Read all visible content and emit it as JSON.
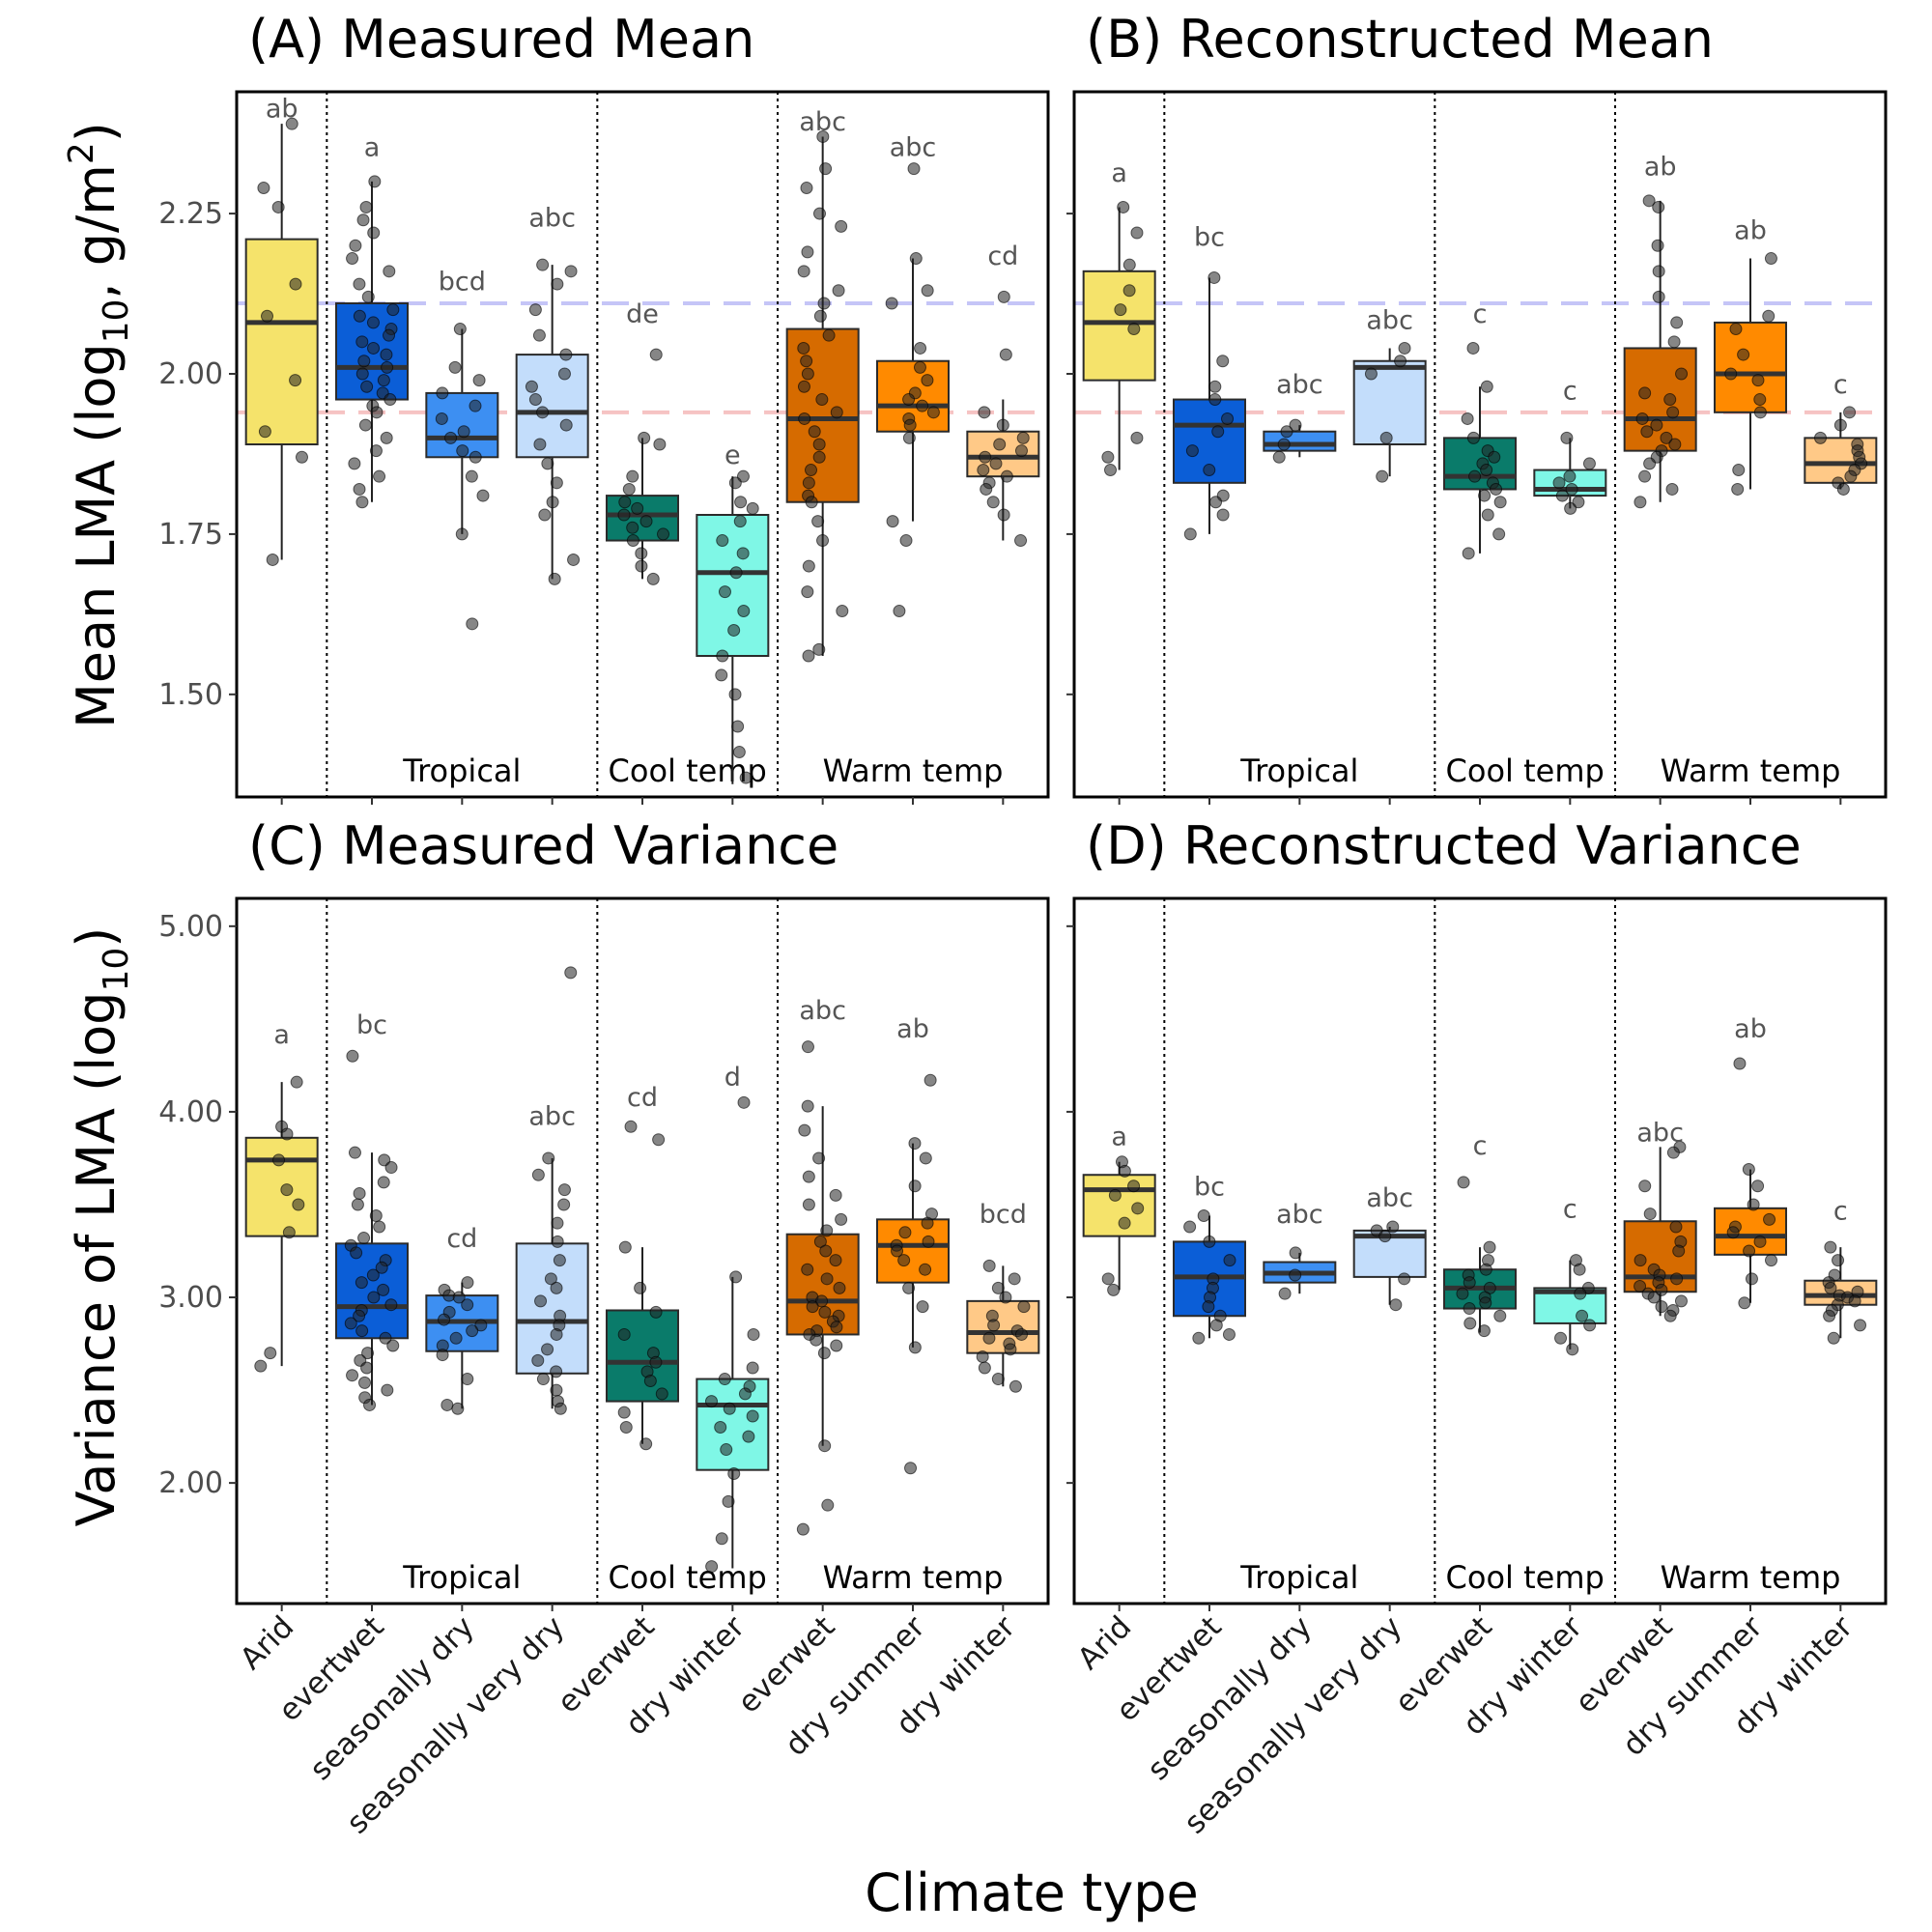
{
  "figure": {
    "xlabel": "Climate type"
  },
  "categories": [
    "Arid",
    "evertwet",
    "seasonally dry",
    "seasonally very dry",
    "everwet",
    "dry winter",
    "everwet",
    "dry summer",
    "dry winter"
  ],
  "groups": [
    {
      "label": "Tropical",
      "from": 1,
      "to": 3
    },
    {
      "label": "Cool temp",
      "from": 4,
      "to": 5
    },
    {
      "label": "Warm temp",
      "from": 6,
      "to": 8
    }
  ],
  "colors": {
    "box_fills": [
      "#f5e36b",
      "#0b5ed7",
      "#3d8ff2",
      "#c3ddfb",
      "#0a7b6a",
      "#7ff7e6",
      "#d66b00",
      "#ff8a00",
      "#ffc987"
    ],
    "ref_line_blue": "#c5c5f7",
    "ref_line_red": "#f6c3c3",
    "points": "#222222"
  },
  "chart_data": [
    {
      "id": "A",
      "type": "box",
      "title": "(A) Measured Mean",
      "ylabel_main": "Mean LMA (log",
      "ylabel_sub": "10",
      "ylabel_mid": ", g/m",
      "ylabel_sup": "2",
      "ylabel_end": ")",
      "ylim": [
        1.34,
        2.44
      ],
      "yticks": [
        1.5,
        1.75,
        2.0,
        2.25
      ],
      "ytick_labels": [
        "1.50",
        "1.75",
        "2.00",
        "2.25"
      ],
      "show_tick_labels": true,
      "ref_lines": [
        {
          "y": 2.11,
          "color": "blue"
        },
        {
          "y": 1.94,
          "color": "red"
        }
      ],
      "letters": [
        "ab",
        "a",
        "bcd",
        "abc",
        "de",
        "e",
        "abc",
        "abc",
        "cd"
      ],
      "letter_y": [
        2.4,
        2.34,
        2.13,
        2.23,
        2.08,
        1.86,
        2.38,
        2.34,
        2.17
      ],
      "boxes": [
        {
          "q1": 1.89,
          "median": 2.08,
          "q3": 2.21,
          "lo": 1.71,
          "hi": 2.39
        },
        {
          "q1": 1.96,
          "median": 2.01,
          "q3": 2.11,
          "lo": 1.8,
          "hi": 2.3
        },
        {
          "q1": 1.87,
          "median": 1.9,
          "q3": 1.97,
          "lo": 1.75,
          "hi": 2.07
        },
        {
          "q1": 1.87,
          "median": 1.94,
          "q3": 2.03,
          "lo": 1.68,
          "hi": 2.17
        },
        {
          "q1": 1.74,
          "median": 1.78,
          "q3": 1.81,
          "lo": 1.68,
          "hi": 1.9
        },
        {
          "q1": 1.56,
          "median": 1.69,
          "q3": 1.78,
          "lo": 1.36,
          "hi": 1.84
        },
        {
          "q1": 1.8,
          "median": 1.93,
          "q3": 2.07,
          "lo": 1.56,
          "hi": 2.37
        },
        {
          "q1": 1.91,
          "median": 1.95,
          "q3": 2.02,
          "lo": 1.77,
          "hi": 2.18
        },
        {
          "q1": 1.84,
          "median": 1.87,
          "q3": 1.91,
          "lo": 1.74,
          "hi": 1.96
        }
      ],
      "points": [
        [
          2.39,
          2.29,
          2.26,
          2.14,
          2.09,
          1.99,
          1.91,
          1.87,
          1.71
        ],
        [
          2.3,
          2.26,
          2.24,
          2.22,
          2.2,
          2.18,
          2.16,
          2.14,
          2.12,
          2.1,
          2.09,
          2.08,
          2.07,
          2.06,
          2.05,
          2.04,
          2.03,
          2.02,
          2.01,
          2.0,
          1.99,
          1.98,
          1.97,
          1.96,
          1.95,
          1.94,
          1.92,
          1.9,
          1.88,
          1.86,
          1.84,
          1.82,
          1.8
        ],
        [
          2.07,
          2.01,
          1.99,
          1.97,
          1.95,
          1.93,
          1.91,
          1.9,
          1.88,
          1.87,
          1.84,
          1.81,
          1.75,
          1.61
        ],
        [
          2.17,
          2.16,
          2.14,
          2.1,
          2.06,
          2.03,
          2.0,
          1.98,
          1.96,
          1.94,
          1.92,
          1.89,
          1.86,
          1.83,
          1.8,
          1.78,
          1.71,
          1.68
        ],
        [
          2.03,
          1.9,
          1.89,
          1.84,
          1.82,
          1.8,
          1.79,
          1.78,
          1.77,
          1.76,
          1.75,
          1.74,
          1.72,
          1.7,
          1.68
        ],
        [
          1.84,
          1.83,
          1.8,
          1.79,
          1.77,
          1.74,
          1.72,
          1.69,
          1.66,
          1.63,
          1.6,
          1.56,
          1.53,
          1.5,
          1.45,
          1.41,
          1.37
        ],
        [
          2.37,
          2.32,
          2.29,
          2.25,
          2.23,
          2.19,
          2.16,
          2.13,
          2.11,
          2.09,
          2.06,
          2.04,
          2.02,
          2.0,
          1.98,
          1.96,
          1.94,
          1.93,
          1.91,
          1.89,
          1.87,
          1.85,
          1.83,
          1.81,
          1.8,
          1.77,
          1.74,
          1.7,
          1.66,
          1.63,
          1.57,
          1.56
        ],
        [
          2.32,
          2.18,
          2.13,
          2.11,
          2.04,
          2.01,
          1.99,
          1.97,
          1.96,
          1.95,
          1.94,
          1.93,
          1.92,
          1.9,
          1.77,
          1.74,
          1.63
        ],
        [
          2.12,
          2.03,
          1.94,
          1.92,
          1.9,
          1.89,
          1.88,
          1.87,
          1.86,
          1.85,
          1.84,
          1.83,
          1.82,
          1.8,
          1.78,
          1.74
        ]
      ]
    },
    {
      "id": "B",
      "type": "box",
      "title": "(B) Reconstructed Mean",
      "ylim": [
        1.34,
        2.44
      ],
      "yticks": [
        1.5,
        1.75,
        2.0,
        2.25
      ],
      "ytick_labels": [
        "",
        "",
        "",
        ""
      ],
      "show_tick_labels": false,
      "ref_lines": [
        {
          "y": 2.11,
          "color": "blue"
        },
        {
          "y": 1.94,
          "color": "red"
        }
      ],
      "letters": [
        "a",
        "bc",
        "abc",
        "abc",
        "c",
        "c",
        "ab",
        "ab",
        "c"
      ],
      "letter_y": [
        2.3,
        2.2,
        1.97,
        2.07,
        2.08,
        1.96,
        2.31,
        2.21,
        1.97
      ],
      "boxes": [
        {
          "q1": 1.99,
          "median": 2.08,
          "q3": 2.16,
          "lo": 1.85,
          "hi": 2.26
        },
        {
          "q1": 1.83,
          "median": 1.92,
          "q3": 1.96,
          "lo": 1.75,
          "hi": 2.15
        },
        {
          "q1": 1.88,
          "median": 1.89,
          "q3": 1.91,
          "lo": 1.87,
          "hi": 1.92
        },
        {
          "q1": 1.89,
          "median": 2.01,
          "q3": 2.02,
          "lo": 1.84,
          "hi": 2.04
        },
        {
          "q1": 1.82,
          "median": 1.84,
          "q3": 1.9,
          "lo": 1.72,
          "hi": 1.98
        },
        {
          "q1": 1.81,
          "median": 1.82,
          "q3": 1.85,
          "lo": 1.79,
          "hi": 1.9
        },
        {
          "q1": 1.88,
          "median": 1.93,
          "q3": 2.04,
          "lo": 1.8,
          "hi": 2.27
        },
        {
          "q1": 1.94,
          "median": 2.0,
          "q3": 2.08,
          "lo": 1.82,
          "hi": 2.18
        },
        {
          "q1": 1.83,
          "median": 1.86,
          "q3": 1.9,
          "lo": 1.82,
          "hi": 1.94
        }
      ],
      "points": [
        [
          2.26,
          2.22,
          2.17,
          2.13,
          2.1,
          2.07,
          1.9,
          1.87,
          1.85
        ],
        [
          2.15,
          2.02,
          1.98,
          1.96,
          1.93,
          1.91,
          1.88,
          1.85,
          1.81,
          1.8,
          1.78,
          1.75
        ],
        [
          1.92,
          1.91,
          1.89,
          1.87
        ],
        [
          2.04,
          2.02,
          2.0,
          1.9,
          1.84
        ],
        [
          2.04,
          1.98,
          1.93,
          1.9,
          1.88,
          1.87,
          1.86,
          1.85,
          1.84,
          1.83,
          1.82,
          1.81,
          1.8,
          1.78,
          1.75,
          1.72
        ],
        [
          1.9,
          1.86,
          1.84,
          1.83,
          1.82,
          1.81,
          1.8,
          1.79
        ],
        [
          2.27,
          2.26,
          2.2,
          2.16,
          2.12,
          2.08,
          2.05,
          2.0,
          1.97,
          1.96,
          1.94,
          1.93,
          1.92,
          1.91,
          1.9,
          1.89,
          1.88,
          1.87,
          1.86,
          1.84,
          1.82,
          1.8
        ],
        [
          2.18,
          2.09,
          2.07,
          2.03,
          2.0,
          1.99,
          1.96,
          1.94,
          1.85,
          1.82
        ],
        [
          1.94,
          1.92,
          1.9,
          1.89,
          1.88,
          1.87,
          1.86,
          1.85,
          1.84,
          1.83,
          1.82
        ]
      ]
    },
    {
      "id": "C",
      "type": "box",
      "title": "(C) Measured Variance",
      "ylabel_main": "Variance of LMA (log",
      "ylabel_sub": "10",
      "ylabel_end": ")",
      "ylim": [
        1.35,
        5.15
      ],
      "yticks": [
        2.0,
        3.0,
        4.0,
        5.0
      ],
      "ytick_labels": [
        "2.00",
        "3.00",
        "4.00",
        "5.00"
      ],
      "show_tick_labels": true,
      "ref_lines": [],
      "letters": [
        "a",
        "bc",
        "cd",
        "abc",
        "cd",
        "d",
        "abc",
        "ab",
        "bcd"
      ],
      "letter_y": [
        4.37,
        4.42,
        3.27,
        3.93,
        4.03,
        4.14,
        4.5,
        4.4,
        3.4
      ],
      "boxes": [
        {
          "q1": 3.33,
          "median": 3.74,
          "q3": 3.86,
          "lo": 2.63,
          "hi": 4.16
        },
        {
          "q1": 2.78,
          "median": 2.95,
          "q3": 3.29,
          "lo": 2.42,
          "hi": 3.78
        },
        {
          "q1": 2.71,
          "median": 2.87,
          "q3": 3.01,
          "lo": 2.4,
          "hi": 3.08
        },
        {
          "q1": 2.59,
          "median": 2.87,
          "q3": 3.29,
          "lo": 2.4,
          "hi": 3.75
        },
        {
          "q1": 2.44,
          "median": 2.65,
          "q3": 2.93,
          "lo": 2.21,
          "hi": 3.27
        },
        {
          "q1": 2.07,
          "median": 2.42,
          "q3": 2.56,
          "lo": 1.54,
          "hi": 3.11
        },
        {
          "q1": 2.8,
          "median": 2.98,
          "q3": 3.34,
          "lo": 2.2,
          "hi": 4.03
        },
        {
          "q1": 3.08,
          "median": 3.28,
          "q3": 3.42,
          "lo": 2.73,
          "hi": 3.83
        },
        {
          "q1": 2.7,
          "median": 2.81,
          "q3": 2.98,
          "lo": 2.52,
          "hi": 3.17
        }
      ],
      "points": [
        [
          4.16,
          3.92,
          3.88,
          3.74,
          3.58,
          3.5,
          3.35,
          2.7,
          2.63
        ],
        [
          4.3,
          3.78,
          3.74,
          3.7,
          3.62,
          3.56,
          3.5,
          3.44,
          3.38,
          3.32,
          3.28,
          3.24,
          3.2,
          3.16,
          3.12,
          3.08,
          3.04,
          3.0,
          2.96,
          2.93,
          2.9,
          2.86,
          2.82,
          2.78,
          2.74,
          2.7,
          2.66,
          2.62,
          2.58,
          2.54,
          2.5,
          2.46,
          2.42
        ],
        [
          3.08,
          3.04,
          3.01,
          3.0,
          2.96,
          2.92,
          2.88,
          2.85,
          2.82,
          2.78,
          2.74,
          2.69,
          2.56,
          2.42,
          2.4
        ],
        [
          4.75,
          3.75,
          3.66,
          3.58,
          3.5,
          3.4,
          3.3,
          3.2,
          3.1,
          3.05,
          2.98,
          2.9,
          2.85,
          2.8,
          2.72,
          2.66,
          2.6,
          2.56,
          2.5,
          2.44,
          2.4
        ],
        [
          3.92,
          3.85,
          3.27,
          3.05,
          2.92,
          2.8,
          2.7,
          2.65,
          2.6,
          2.55,
          2.48,
          2.38,
          2.3,
          2.21
        ],
        [
          4.05,
          3.11,
          2.8,
          2.62,
          2.56,
          2.52,
          2.48,
          2.44,
          2.4,
          2.36,
          2.3,
          2.25,
          2.18,
          2.05,
          1.9,
          1.7,
          1.55
        ],
        [
          4.35,
          4.03,
          3.9,
          3.75,
          3.65,
          3.55,
          3.5,
          3.42,
          3.36,
          3.3,
          3.25,
          3.2,
          3.15,
          3.1,
          3.05,
          3.0,
          2.98,
          2.95,
          2.92,
          2.9,
          2.87,
          2.84,
          2.82,
          2.8,
          2.77,
          2.74,
          2.7,
          2.2,
          1.88,
          1.75
        ],
        [
          4.17,
          3.83,
          3.75,
          3.6,
          3.45,
          3.4,
          3.35,
          3.3,
          3.28,
          3.25,
          3.2,
          3.15,
          3.05,
          2.95,
          2.73,
          2.08
        ],
        [
          3.17,
          3.1,
          3.05,
          3.0,
          2.95,
          2.9,
          2.85,
          2.82,
          2.8,
          2.78,
          2.75,
          2.72,
          2.68,
          2.62,
          2.56,
          2.52
        ]
      ]
    },
    {
      "id": "D",
      "type": "box",
      "title": "(D) Reconstructed Variance",
      "ylim": [
        1.35,
        5.15
      ],
      "yticks": [
        2.0,
        3.0,
        4.0,
        5.0
      ],
      "ytick_labels": [
        "",
        "",
        "",
        ""
      ],
      "show_tick_labels": false,
      "ref_lines": [],
      "letters": [
        "a",
        "bc",
        "abc",
        "abc",
        "c",
        "c",
        "abc",
        "ab",
        "c"
      ],
      "letter_y": [
        3.82,
        3.55,
        3.4,
        3.49,
        3.77,
        3.43,
        3.84,
        4.4,
        3.42
      ],
      "boxes": [
        {
          "q1": 3.33,
          "median": 3.58,
          "q3": 3.66,
          "lo": 3.04,
          "hi": 3.73
        },
        {
          "q1": 2.9,
          "median": 3.11,
          "q3": 3.3,
          "lo": 2.78,
          "hi": 3.44
        },
        {
          "q1": 3.08,
          "median": 3.13,
          "q3": 3.19,
          "lo": 3.02,
          "hi": 3.24
        },
        {
          "q1": 3.11,
          "median": 3.33,
          "q3": 3.36,
          "lo": 2.96,
          "hi": 3.38
        },
        {
          "q1": 2.94,
          "median": 3.05,
          "q3": 3.15,
          "lo": 2.81,
          "hi": 3.27
        },
        {
          "q1": 2.86,
          "median": 3.03,
          "q3": 3.05,
          "lo": 2.72,
          "hi": 3.2
        },
        {
          "q1": 3.03,
          "median": 3.11,
          "q3": 3.41,
          "lo": 2.9,
          "hi": 3.81
        },
        {
          "q1": 3.23,
          "median": 3.33,
          "q3": 3.48,
          "lo": 2.97,
          "hi": 3.69
        },
        {
          "q1": 2.96,
          "median": 3.01,
          "q3": 3.09,
          "lo": 2.78,
          "hi": 3.27
        }
      ],
      "points": [
        [
          3.73,
          3.68,
          3.6,
          3.55,
          3.48,
          3.4,
          3.1,
          3.04
        ],
        [
          3.44,
          3.38,
          3.3,
          3.2,
          3.1,
          3.05,
          3.0,
          2.95,
          2.9,
          2.85,
          2.8,
          2.78
        ],
        [
          3.24,
          3.12,
          3.02
        ],
        [
          3.38,
          3.36,
          3.33,
          3.1,
          2.96
        ],
        [
          3.62,
          3.27,
          3.2,
          3.15,
          3.12,
          3.08,
          3.05,
          3.02,
          3.0,
          2.97,
          2.94,
          2.9,
          2.86,
          2.82
        ],
        [
          3.2,
          3.15,
          3.05,
          3.02,
          2.9,
          2.85,
          2.78,
          2.72
        ],
        [
          3.81,
          3.78,
          3.6,
          3.45,
          3.38,
          3.3,
          3.25,
          3.2,
          3.15,
          3.12,
          3.1,
          3.08,
          3.06,
          3.04,
          3.02,
          3.0,
          2.98,
          2.95,
          2.93,
          2.9
        ],
        [
          4.26,
          3.69,
          3.6,
          3.5,
          3.42,
          3.38,
          3.35,
          3.3,
          3.25,
          3.2,
          3.1,
          2.97
        ],
        [
          3.27,
          3.2,
          3.12,
          3.08,
          3.05,
          3.03,
          3.01,
          3.0,
          2.98,
          2.96,
          2.93,
          2.9,
          2.85,
          2.78
        ]
      ]
    }
  ]
}
